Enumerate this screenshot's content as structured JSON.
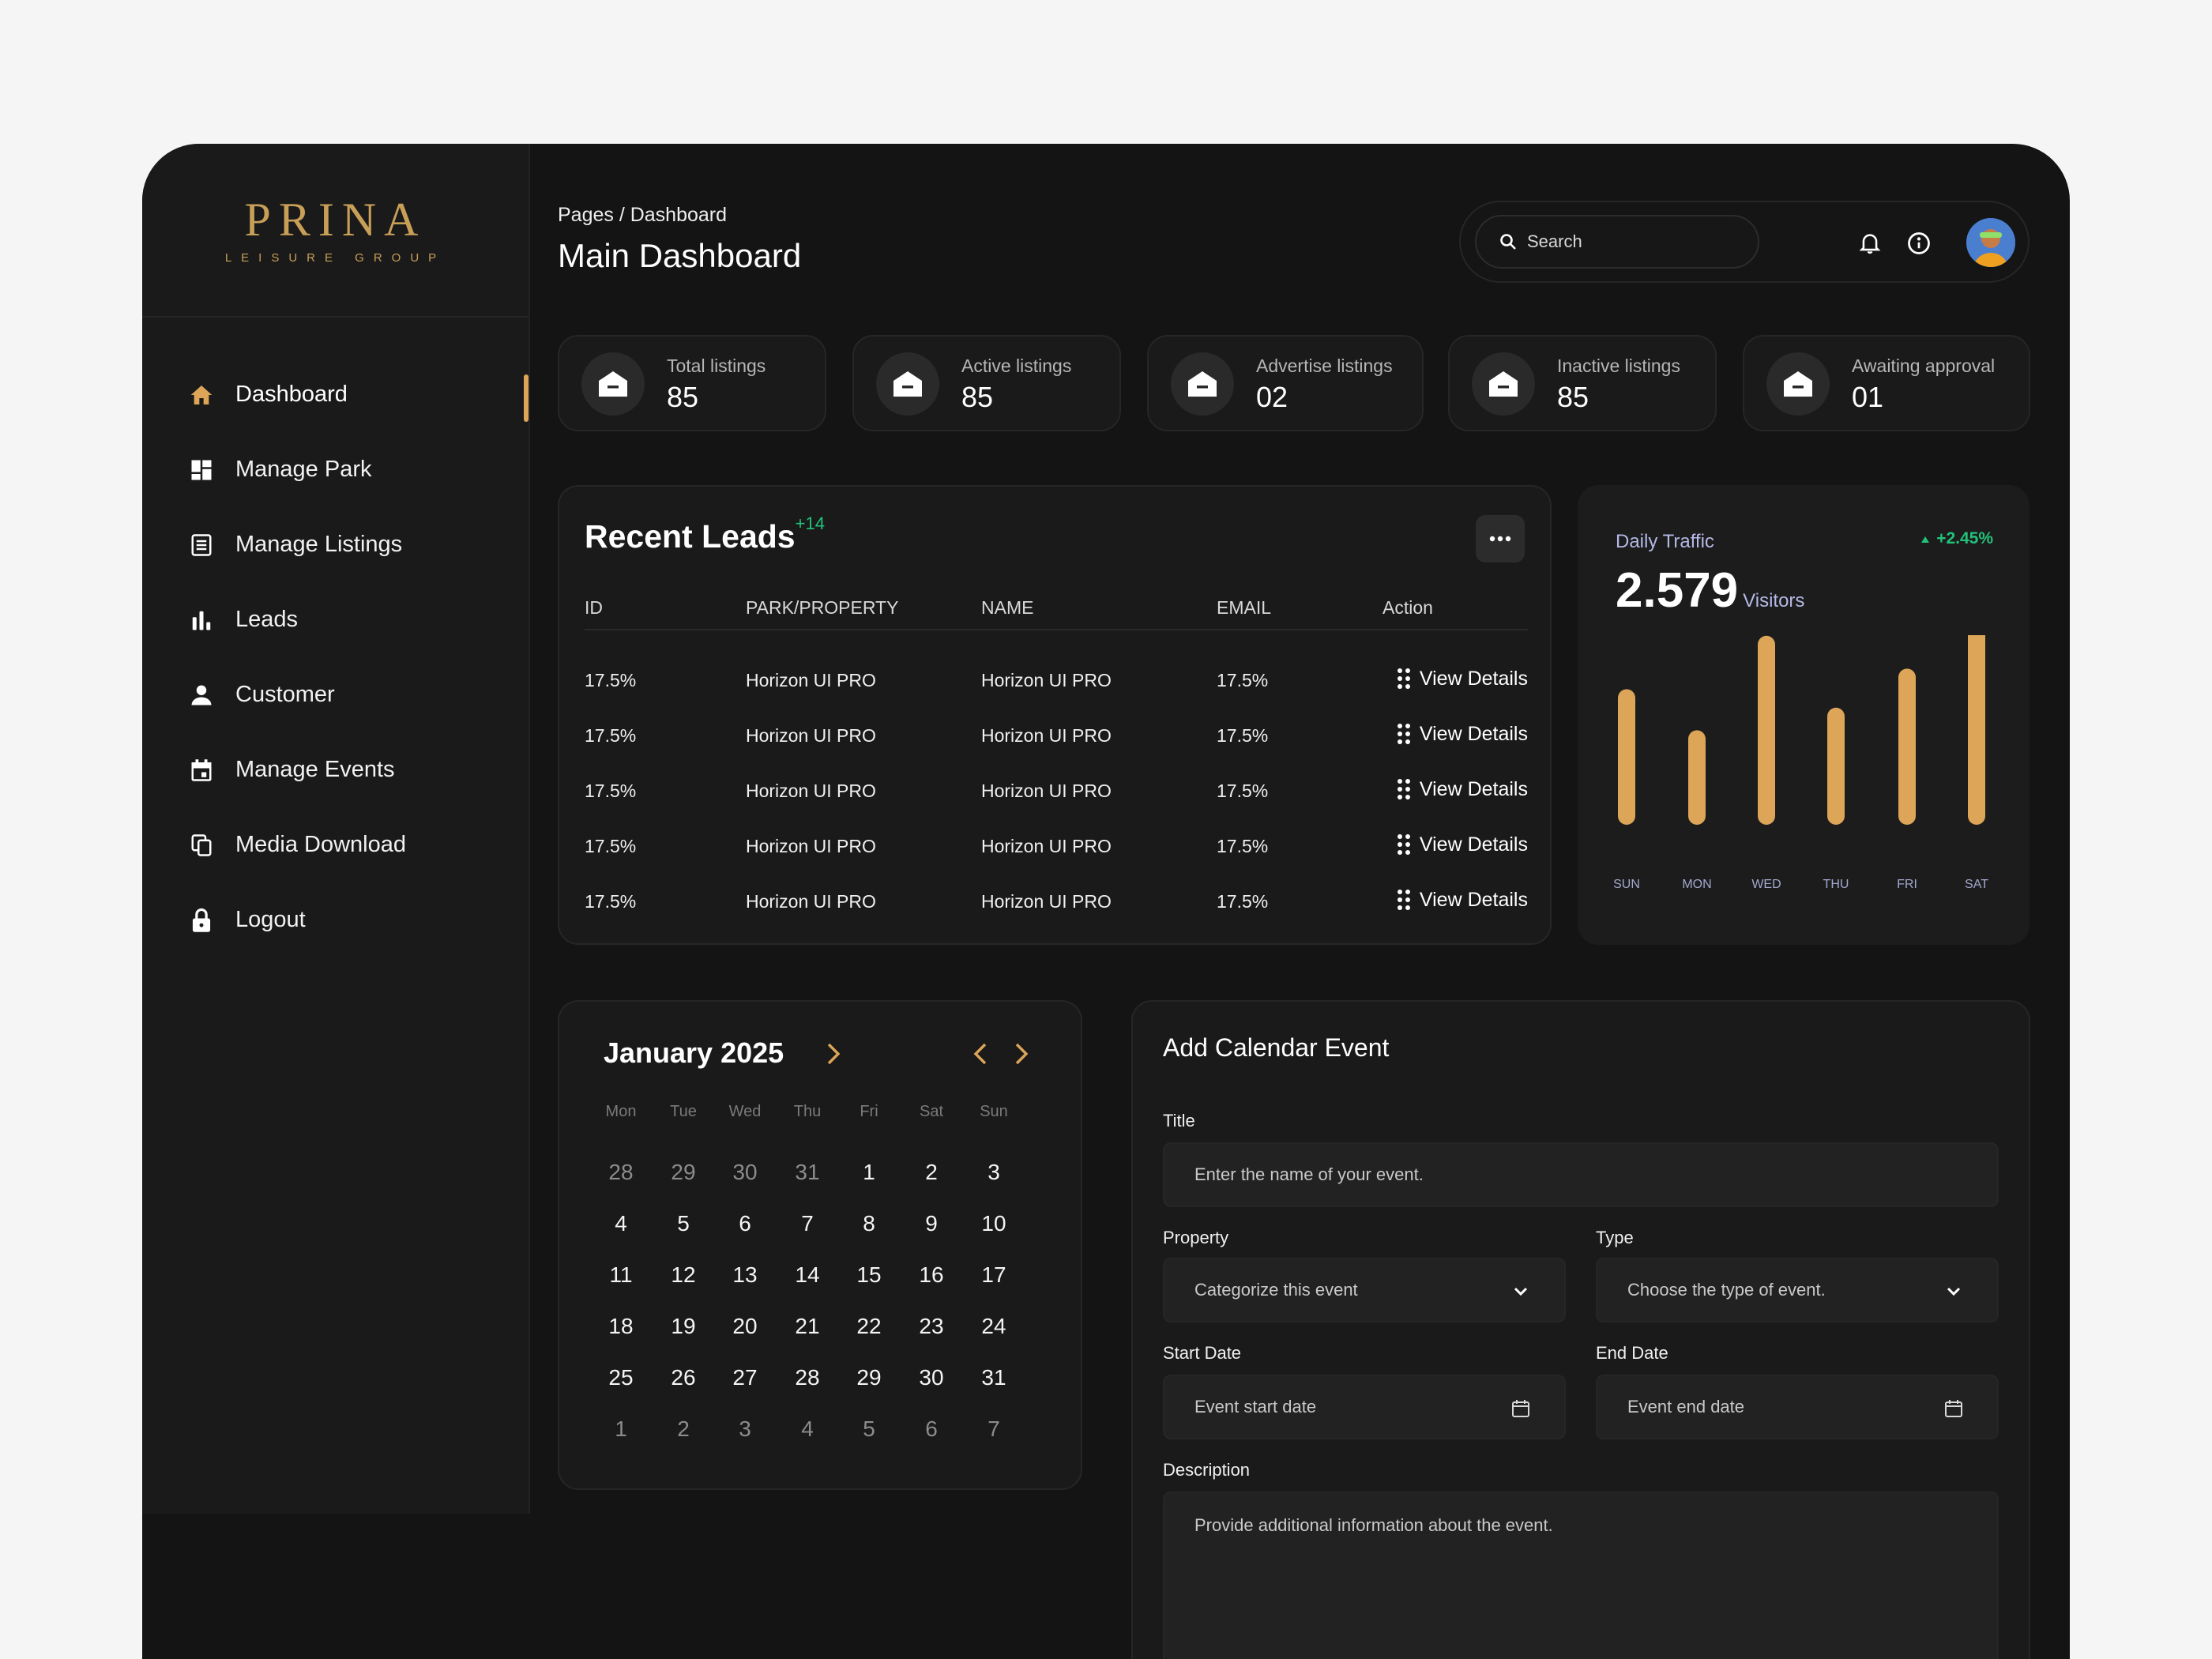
{
  "brand": {
    "name": "PRINA",
    "tagline": "LEISURE GROUP",
    "color": "#c89f57"
  },
  "sidebar": {
    "items": [
      {
        "label": "Dashboard",
        "icon": "home-icon",
        "active": true
      },
      {
        "label": "Manage Park",
        "icon": "grid-icon",
        "active": false
      },
      {
        "label": "Manage Listings",
        "icon": "list-icon",
        "active": false
      },
      {
        "label": "Leads",
        "icon": "bar-chart-icon",
        "active": false
      },
      {
        "label": "Customer",
        "icon": "user-icon",
        "active": false
      },
      {
        "label": "Manage Events",
        "icon": "calendar-icon",
        "active": false
      },
      {
        "label": "Media Download",
        "icon": "copy-icon",
        "active": false
      },
      {
        "label": "Logout",
        "icon": "lock-icon",
        "active": false
      }
    ]
  },
  "header": {
    "breadcrumb": "Pages / Dashboard",
    "title": "Main Dashboard",
    "search_placeholder": "Search"
  },
  "stats": [
    {
      "label": "Total listings",
      "value": "85"
    },
    {
      "label": "Active listings",
      "value": "85"
    },
    {
      "label": "Advertise listings",
      "value": "02"
    },
    {
      "label": "Inactive listings",
      "value": "85"
    },
    {
      "label": "Awaiting approval",
      "value": "01"
    }
  ],
  "leads": {
    "title": "Recent Leads",
    "count": "+14",
    "columns": [
      "ID",
      "PARK/PROPERTY",
      "NAME",
      "EMAIL",
      "Action"
    ],
    "rows": [
      {
        "id": "17.5%",
        "property": "Horizon UI PRO",
        "name": "Horizon UI PRO",
        "email": "17.5%",
        "action": "View Details"
      },
      {
        "id": "17.5%",
        "property": "Horizon UI PRO",
        "name": "Horizon UI PRO",
        "email": "17.5%",
        "action": "View Details"
      },
      {
        "id": "17.5%",
        "property": "Horizon UI PRO",
        "name": "Horizon UI PRO",
        "email": "17.5%",
        "action": "View Details"
      },
      {
        "id": "17.5%",
        "property": "Horizon UI PRO",
        "name": "Horizon UI PRO",
        "email": "17.5%",
        "action": "View Details"
      },
      {
        "id": "17.5%",
        "property": "Horizon UI PRO",
        "name": "Horizon UI PRO",
        "email": "17.5%",
        "action": "View Details"
      }
    ]
  },
  "traffic": {
    "label": "Daily Traffic",
    "change": "+2.45%",
    "value": "2.579",
    "unit": "Visitors",
    "accent": "#dca558"
  },
  "chart_data": {
    "type": "bar",
    "title": "Daily Traffic",
    "categories": [
      "SUN",
      "MON",
      "WED",
      "THU",
      "FRI",
      "SAT"
    ],
    "values": [
      66,
      46,
      92,
      57,
      76,
      100
    ],
    "ylim": [
      0,
      100
    ],
    "grid": false,
    "legend": "none"
  },
  "calendar": {
    "title": "January 2025",
    "weekdays": [
      "Mon",
      "Tue",
      "Wed",
      "Thu",
      "Fri",
      "Sat",
      "Sun"
    ],
    "weeks": [
      [
        {
          "d": "28",
          "m": true
        },
        {
          "d": "29",
          "m": true
        },
        {
          "d": "30",
          "m": true
        },
        {
          "d": "31",
          "m": true
        },
        {
          "d": "1",
          "m": false
        },
        {
          "d": "2",
          "m": false
        },
        {
          "d": "3",
          "m": false
        }
      ],
      [
        {
          "d": "4",
          "m": false
        },
        {
          "d": "5",
          "m": false
        },
        {
          "d": "6",
          "m": false
        },
        {
          "d": "7",
          "m": false
        },
        {
          "d": "8",
          "m": false
        },
        {
          "d": "9",
          "m": false
        },
        {
          "d": "10",
          "m": false
        }
      ],
      [
        {
          "d": "11",
          "m": false
        },
        {
          "d": "12",
          "m": false
        },
        {
          "d": "13",
          "m": false
        },
        {
          "d": "14",
          "m": false
        },
        {
          "d": "15",
          "m": false
        },
        {
          "d": "16",
          "m": false
        },
        {
          "d": "17",
          "m": false
        }
      ],
      [
        {
          "d": "18",
          "m": false
        },
        {
          "d": "19",
          "m": false
        },
        {
          "d": "20",
          "m": false
        },
        {
          "d": "21",
          "m": false
        },
        {
          "d": "22",
          "m": false
        },
        {
          "d": "23",
          "m": false
        },
        {
          "d": "24",
          "m": false
        }
      ],
      [
        {
          "d": "25",
          "m": false
        },
        {
          "d": "26",
          "m": false
        },
        {
          "d": "27",
          "m": false
        },
        {
          "d": "28",
          "m": false
        },
        {
          "d": "29",
          "m": false
        },
        {
          "d": "30",
          "m": false
        },
        {
          "d": "31",
          "m": false
        }
      ],
      [
        {
          "d": "1",
          "m": true
        },
        {
          "d": "2",
          "m": true
        },
        {
          "d": "3",
          "m": true
        },
        {
          "d": "4",
          "m": true
        },
        {
          "d": "5",
          "m": true
        },
        {
          "d": "6",
          "m": true
        },
        {
          "d": "7",
          "m": true
        }
      ]
    ]
  },
  "event_form": {
    "title": "Add Calendar Event",
    "title_label": "Title",
    "title_placeholder": "Enter the name of your event.",
    "property_label": "Property",
    "property_value": "Categorize this event",
    "type_label": "Type",
    "type_value": "Choose the type of event.",
    "start_label": "Start Date",
    "start_placeholder": "Event start date",
    "end_label": "End Date",
    "end_placeholder": "Event end date",
    "description_label": "Description",
    "description_placeholder": "Provide additional information about the event."
  }
}
